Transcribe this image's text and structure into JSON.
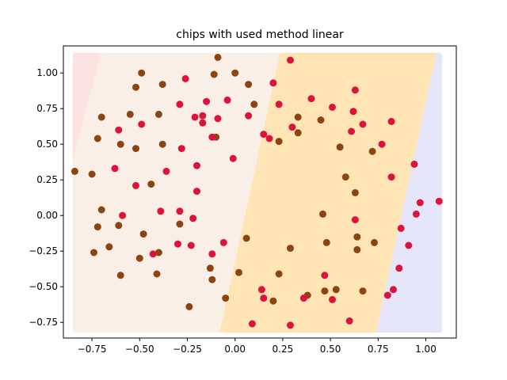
{
  "chart_data": {
    "type": "scatter",
    "title": "chips with used method linear",
    "xlabel": "",
    "ylabel": "",
    "xlim": [
      -0.9,
      1.16
    ],
    "ylim": [
      -0.86,
      1.19
    ],
    "grid": false,
    "legend": "none",
    "x_ticks": [
      -0.75,
      -0.5,
      -0.25,
      0.0,
      0.25,
      0.5,
      0.75,
      1.0
    ],
    "x_tick_labels": [
      "−0.75",
      "−0.50",
      "−0.25",
      "0.00",
      "0.25",
      "0.50",
      "0.75",
      "1.00"
    ],
    "y_ticks": [
      -0.75,
      -0.5,
      -0.25,
      0.0,
      0.25,
      0.5,
      0.75,
      1.0
    ],
    "y_tick_labels": [
      "−0.75",
      "−0.50",
      "−0.25",
      "0.00",
      "0.25",
      "0.50",
      "0.75",
      "1.00"
    ],
    "background_regions": [
      {
        "color": "#fde2e2",
        "polygon": [
          [
            -0.835,
            1.12
          ],
          [
            -0.69,
            1.12
          ],
          [
            -0.835,
            0.38
          ]
        ]
      },
      {
        "color": "#faefe6",
        "polygon": [
          [
            -0.69,
            1.12
          ],
          [
            0.25,
            1.12
          ],
          [
            -0.06,
            -0.8
          ],
          [
            -0.835,
            -0.8
          ],
          [
            -0.835,
            0.38
          ]
        ]
      },
      {
        "color": "#ffe4b5",
        "polygon": [
          [
            0.25,
            1.12
          ],
          [
            1.07,
            1.12
          ],
          [
            0.76,
            -0.8
          ],
          [
            -0.06,
            -0.8
          ]
        ]
      },
      {
        "color": "#e6e6fa",
        "polygon": [
          [
            1.07,
            1.12
          ],
          [
            1.07,
            -0.8
          ],
          [
            0.76,
            -0.8
          ]
        ]
      }
    ],
    "series": [
      {
        "color": "#8b4513",
        "points": [
          [
            -0.84,
            0.31
          ],
          [
            -0.75,
            0.29
          ],
          [
            -0.7,
            0.69
          ],
          [
            -0.72,
            0.54
          ],
          [
            -0.7,
            0.04
          ],
          [
            -0.72,
            -0.08
          ],
          [
            -0.74,
            -0.26
          ],
          [
            -0.66,
            -0.22
          ],
          [
            -0.61,
            -0.07
          ],
          [
            -0.6,
            -0.42
          ],
          [
            -0.6,
            0.5
          ],
          [
            -0.55,
            0.71
          ],
          [
            -0.52,
            0.9
          ],
          [
            -0.49,
            1.0
          ],
          [
            -0.52,
            0.47
          ],
          [
            -0.48,
            -0.13
          ],
          [
            -0.5,
            -0.3
          ],
          [
            -0.44,
            0.22
          ],
          [
            -0.4,
            0.71
          ],
          [
            -0.38,
            0.92
          ],
          [
            -0.38,
            0.5
          ],
          [
            -0.4,
            -0.26
          ],
          [
            -0.41,
            -0.41
          ],
          [
            -0.29,
            -0.06
          ],
          [
            -0.24,
            -0.64
          ],
          [
            -0.12,
            -0.45
          ],
          [
            -0.13,
            -0.37
          ],
          [
            -0.11,
            0.99
          ],
          [
            -0.09,
            1.11
          ],
          [
            -0.1,
            0.55
          ],
          [
            -0.05,
            -0.58
          ],
          [
            0.0,
            1.0
          ],
          [
            0.02,
            -0.4
          ],
          [
            0.07,
            0.92
          ],
          [
            0.06,
            -0.16
          ],
          [
            0.1,
            0.78
          ],
          [
            0.2,
            -0.6
          ],
          [
            0.23,
            0.52
          ],
          [
            0.23,
            -0.41
          ],
          [
            0.29,
            -0.23
          ],
          [
            0.33,
            0.69
          ],
          [
            0.33,
            0.58
          ],
          [
            0.38,
            -0.56
          ],
          [
            0.45,
            0.67
          ],
          [
            0.46,
            0.01
          ],
          [
            0.47,
            -0.53
          ],
          [
            0.48,
            -0.19
          ],
          [
            0.53,
            -0.52
          ],
          [
            0.55,
            0.48
          ],
          [
            0.58,
            0.27
          ],
          [
            0.63,
            0.16
          ],
          [
            0.64,
            -0.15
          ],
          [
            0.64,
            -0.24
          ],
          [
            0.67,
            -0.53
          ],
          [
            0.72,
            0.45
          ],
          [
            0.73,
            -0.19
          ]
        ]
      },
      {
        "color": "#dc143c",
        "points": [
          [
            -0.63,
            0.33
          ],
          [
            -0.61,
            0.6
          ],
          [
            -0.59,
            0.0
          ],
          [
            -0.52,
            0.21
          ],
          [
            -0.49,
            0.64
          ],
          [
            -0.43,
            -0.27
          ],
          [
            -0.39,
            0.03
          ],
          [
            -0.36,
            0.31
          ],
          [
            -0.29,
            0.78
          ],
          [
            -0.29,
            0.03
          ],
          [
            -0.28,
            0.47
          ],
          [
            -0.26,
            0.96
          ],
          [
            -0.3,
            -0.2
          ],
          [
            -0.23,
            -0.21
          ],
          [
            -0.21,
            0.69
          ],
          [
            -0.22,
            -0.02
          ],
          [
            -0.2,
            0.35
          ],
          [
            -0.2,
            0.17
          ],
          [
            -0.17,
            0.7
          ],
          [
            -0.17,
            0.65
          ],
          [
            -0.15,
            0.8
          ],
          [
            -0.12,
            0.55
          ],
          [
            -0.12,
            -0.27
          ],
          [
            -0.09,
            0.68
          ],
          [
            -0.06,
            -0.19
          ],
          [
            -0.04,
            0.81
          ],
          [
            -0.01,
            0.4
          ],
          [
            0.07,
            0.7
          ],
          [
            0.09,
            -0.76
          ],
          [
            0.14,
            -0.52
          ],
          [
            0.15,
            0.57
          ],
          [
            0.15,
            -0.58
          ],
          [
            0.18,
            0.54
          ],
          [
            0.2,
            0.93
          ],
          [
            0.23,
            0.78
          ],
          [
            0.29,
            1.09
          ],
          [
            0.3,
            0.62
          ],
          [
            0.29,
            -0.77
          ],
          [
            0.36,
            -0.58
          ],
          [
            0.4,
            0.82
          ],
          [
            0.47,
            -0.42
          ],
          [
            0.51,
            0.76
          ],
          [
            0.51,
            -0.59
          ],
          [
            0.6,
            -0.74
          ],
          [
            0.61,
            0.59
          ],
          [
            0.62,
            0.73
          ],
          [
            0.63,
            0.88
          ],
          [
            0.63,
            -0.03
          ],
          [
            0.67,
            0.64
          ],
          [
            0.77,
            0.5
          ],
          [
            0.82,
            0.66
          ],
          [
            0.82,
            0.27
          ],
          [
            0.8,
            -0.56
          ],
          [
            0.83,
            -0.52
          ],
          [
            0.86,
            -0.37
          ],
          [
            0.87,
            -0.09
          ],
          [
            0.91,
            -0.21
          ],
          [
            0.94,
            0.36
          ],
          [
            0.95,
            0.01
          ],
          [
            0.97,
            0.09
          ],
          [
            1.07,
            0.1
          ]
        ]
      }
    ]
  }
}
